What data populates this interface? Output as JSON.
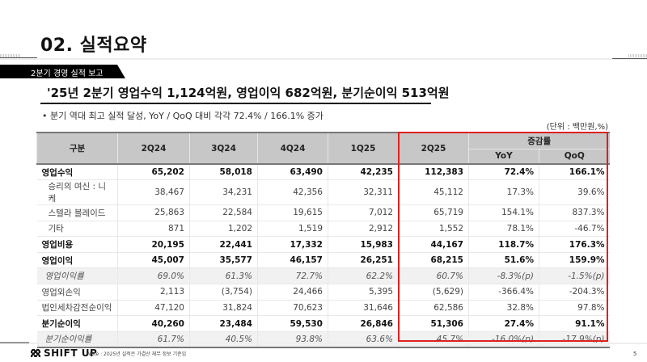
{
  "header": {
    "page_title": "02. 실적요약",
    "section_tag": "2분기 경영 실적 보고"
  },
  "headline": {
    "text": "'25년 2분기 영업수익 1,124억원, 영업이익 682억원, 분기순이익 513억원",
    "icon": "checker-icon"
  },
  "bullet": "• 분기 역대 최고 실적 달성, YoY / QoQ 대비 각각 72.4% / 166.1% 증가",
  "unit": "(단위 : 백만원,%)",
  "table": {
    "headers": {
      "category": "구분",
      "q1": "2Q24",
      "q2": "3Q24",
      "q3": "4Q24",
      "q4": "1Q25",
      "q5": "2Q25",
      "change_group": "증감률",
      "yoy": "YoY",
      "qoq": "QoQ"
    },
    "rows": [
      {
        "label": "영업수익",
        "values": [
          "65,202",
          "58,018",
          "63,490",
          "42,235",
          "112,383",
          "72.4%",
          "166.1%"
        ],
        "style": "bold"
      },
      {
        "label": "승리의 여신 : 니케",
        "values": [
          "38,467",
          "34,231",
          "42,356",
          "32,311",
          "45,112",
          "17.3%",
          "39.6%"
        ],
        "style": "sub"
      },
      {
        "label": "스텔라 블레이드",
        "values": [
          "25,863",
          "22,584",
          "19,615",
          "7,012",
          "65,719",
          "154.1%",
          "837.3%"
        ],
        "style": "sub"
      },
      {
        "label": "기타",
        "values": [
          "871",
          "1,202",
          "1,519",
          "2,912",
          "1,552",
          "78.1%",
          "-46.7%"
        ],
        "style": "sub"
      },
      {
        "label": "영업비용",
        "values": [
          "20,195",
          "22,441",
          "17,332",
          "15,983",
          "44,167",
          "118.7%",
          "176.3%"
        ],
        "style": "bold"
      },
      {
        "label": "영업이익",
        "values": [
          "45,007",
          "35,577",
          "46,157",
          "26,251",
          "68,215",
          "51.6%",
          "159.9%"
        ],
        "style": "bold"
      },
      {
        "label": "영업이익률",
        "values": [
          "69.0%",
          "61.3%",
          "72.7%",
          "62.2%",
          "60.7%",
          "-8.3%(p)",
          "-1.5%(p)"
        ],
        "style": "italic"
      },
      {
        "label": "영업외손익",
        "values": [
          "2,113",
          "(3,754)",
          "24,466",
          "5,395",
          "(5,629)",
          "-366.4%",
          "-204.3%"
        ],
        "style": "normal"
      },
      {
        "label": "법인세차감전순이익",
        "values": [
          "47,120",
          "31,824",
          "70,623",
          "31,646",
          "62,586",
          "32.8%",
          "97.8%"
        ],
        "style": "normal"
      },
      {
        "label": "분기순이익",
        "values": [
          "40,260",
          "23,484",
          "59,530",
          "26,846",
          "51,306",
          "27.4%",
          "91.1%"
        ],
        "style": "bold"
      },
      {
        "label": "분기순이익률",
        "values": [
          "61.7%",
          "40.5%",
          "93.8%",
          "63.6%",
          "45.7%",
          "-16.0%(p)",
          "-17.9%(p)"
        ],
        "style": "italic"
      }
    ]
  },
  "highlight_color": "#e02020",
  "footer": {
    "logo": "SHIFT UP",
    "note": "Note : 2025년 실적은 가결산 재무 정보 기준임",
    "page_number": "5"
  }
}
